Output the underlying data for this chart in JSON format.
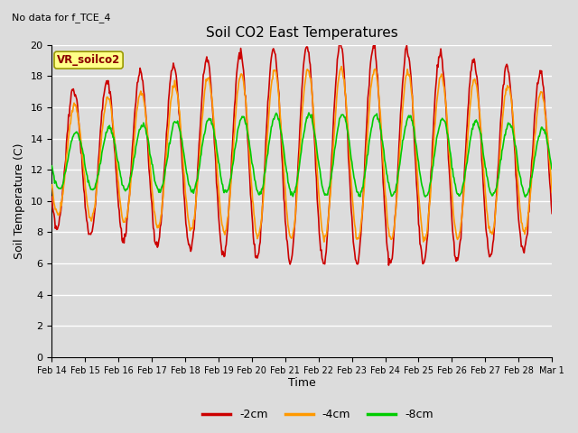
{
  "title": "Soil CO2 East Temperatures",
  "no_data_text": "No data for f_TCE_4",
  "xlabel": "Time",
  "ylabel": "Soil Temperature (C)",
  "ylim": [
    0,
    20
  ],
  "yticks": [
    0,
    2,
    4,
    6,
    8,
    10,
    12,
    14,
    16,
    18,
    20
  ],
  "legend_label": "VR_soilco2",
  "series_labels": [
    "-2cm",
    "-4cm",
    "-8cm"
  ],
  "series_colors": [
    "#cc0000",
    "#ff9900",
    "#00cc00"
  ],
  "line_width": 1.2,
  "bg_color": "#dcdcdc",
  "n_days": 15,
  "pts_per_day": 48,
  "xtick_dates": [
    "Feb 14",
    "Feb 15",
    "Feb 16",
    "Feb 17",
    "Feb 18",
    "Feb 19",
    "Feb 20",
    "Feb 21",
    "Feb 22",
    "Feb 23",
    "Feb 24",
    "Feb 25",
    "Feb 26",
    "Feb 27",
    "Feb 28",
    "Mar 1"
  ]
}
